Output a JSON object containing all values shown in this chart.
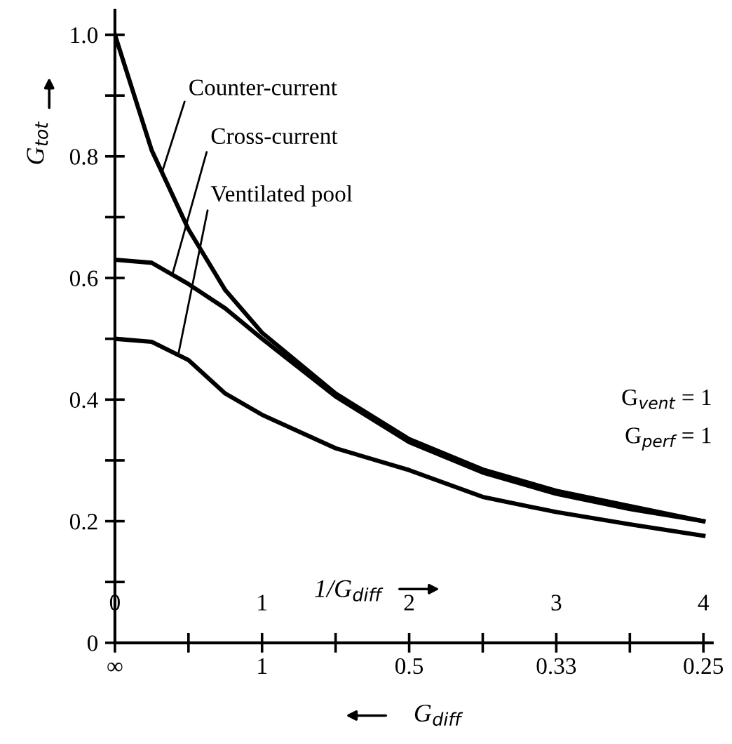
{
  "chart_data": {
    "type": "line",
    "ylabel": "G$_{tot}$",
    "xlabel": "1/G$_{diff}$",
    "x": [
      0,
      0.25,
      0.5,
      0.75,
      1,
      1.5,
      2,
      2.5,
      3,
      3.5,
      4
    ],
    "series": [
      {
        "name": "Counter-current",
        "color": "#000000",
        "values": [
          1.0,
          0.81,
          0.68,
          0.58,
          0.51,
          0.41,
          0.335,
          0.285,
          0.25,
          0.225,
          0.2
        ]
      },
      {
        "name": "Cross-current",
        "color": "#000000",
        "values": [
          0.63,
          0.625,
          0.59,
          0.55,
          0.5,
          0.405,
          0.33,
          0.28,
          0.245,
          0.22,
          0.2
        ]
      },
      {
        "name": "Ventilated pool",
        "color": "#000000",
        "values": [
          0.5,
          0.495,
          0.465,
          0.41,
          0.375,
          0.32,
          0.284,
          0.24,
          0.215,
          0.195,
          0.176
        ]
      }
    ],
    "annotations": [
      "G$_{vent}$ = 1",
      "G$_{perf}$ = 1",
      "∞",
      "1",
      "0.5",
      "0.33",
      "0.25",
      "G$_{diff}$"
    ],
    "xlim": [
      0,
      4.06
    ],
    "ylim": [
      0,
      1.04
    ],
    "xticks": [
      0,
      {
        "value": 0.5,
        "label": null
      },
      1,
      {
        "value": 1.5,
        "label": null
      },
      2,
      {
        "value": 2.5,
        "label": null
      },
      3,
      {
        "value": 3.5,
        "label": null
      },
      4
    ],
    "yticks": [
      0,
      {
        "value": 0.1,
        "label": null
      },
      {
        "value": 0.2,
        "label": "0.2"
      },
      {
        "value": 0.3,
        "label": null
      },
      {
        "value": 0.4,
        "label": "0.4"
      },
      {
        "value": 0.5,
        "label": null
      },
      {
        "value": 0.6,
        "label": "0.6"
      },
      {
        "value": 0.7,
        "label": null
      },
      {
        "value": 0.8,
        "label": "0.8"
      },
      {
        "value": 0.9,
        "label": null
      },
      {
        "value": 1.0,
        "label": "1.0"
      }
    ],
    "grid": false,
    "marker": "none",
    "line_style": "solid"
  }
}
